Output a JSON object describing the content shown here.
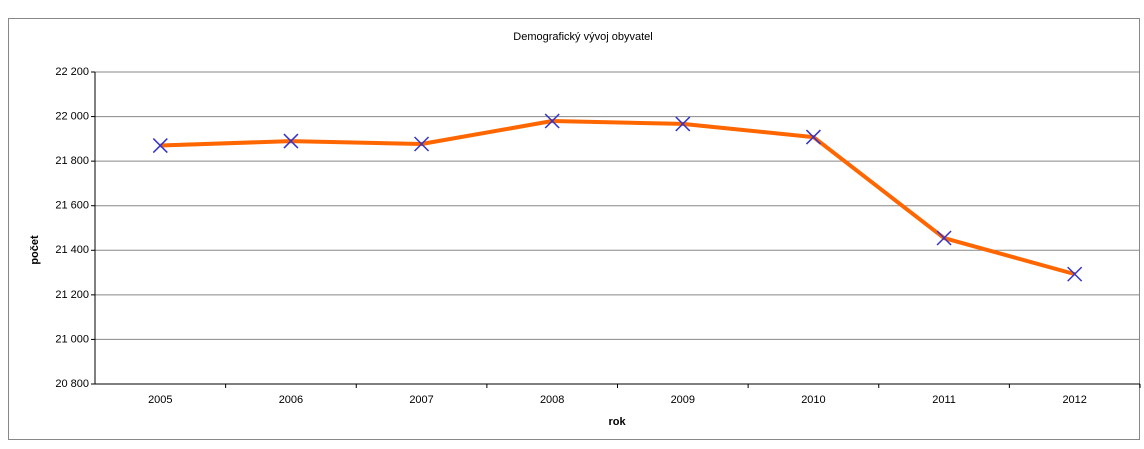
{
  "chart_data": {
    "type": "line",
    "title": "Demografický vývoj obyvatel",
    "x_label": "rok",
    "y_label": "počet",
    "categories": [
      "2005",
      "2006",
      "2007",
      "2008",
      "2009",
      "2010",
      "2011",
      "2012"
    ],
    "series": [
      {
        "color": "#ff6600",
        "marker_color": "#3333cc",
        "values": [
          21870,
          21890,
          21877,
          21980,
          21967,
          21908,
          21455,
          21293
        ]
      }
    ],
    "ylim": [
      20800,
      22200
    ],
    "yticks": [
      {
        "value": 20800,
        "label": "20 800"
      },
      {
        "value": 21000,
        "label": "21 000"
      },
      {
        "value": 21200,
        "label": "21 200"
      },
      {
        "value": 21400,
        "label": "21 400"
      },
      {
        "value": 21600,
        "label": "21 600"
      },
      {
        "value": 21800,
        "label": "21 800"
      },
      {
        "value": 22000,
        "label": "22 000"
      },
      {
        "value": 22200,
        "label": "22 200"
      }
    ],
    "grid": true
  }
}
